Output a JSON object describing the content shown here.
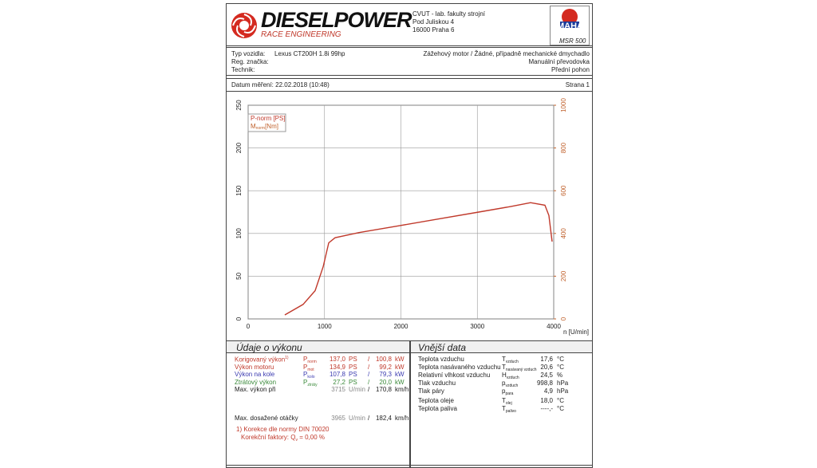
{
  "header": {
    "logo": "DIESELPOWER",
    "logo_sub": "RACE ENGINEERING",
    "address": [
      "CVUT - lab. fakulty strojní",
      "Pod Juliskou 4",
      "16000 Praha 6"
    ],
    "brand": "MAHA",
    "model": "MSR 500"
  },
  "vehicle": {
    "type_label": "Typ vozidla:",
    "type_value": "Lexus CT200H 1.8i 99hp",
    "reg_label": "Reg. značka:",
    "tech_label": "Technik:",
    "engine": "Zážehový motor / Žádné, případně mechanické dmychadlo",
    "gearbox": "Manuální převodovka",
    "drive": "Přední pohon"
  },
  "measurement": {
    "date": "Datum měření: 22.02.2018 (10:48)",
    "page": "Strana 1"
  },
  "chart_data": {
    "type": "line",
    "x_label": "n [U/min]",
    "x": [
      480,
      720,
      877,
      982,
      1055,
      1138,
      1452,
      1974,
      2496,
      3018,
      3436,
      3697,
      3885,
      3937,
      3979
    ],
    "series": [
      {
        "name": "P-norm [PS]",
        "color": "#c0392b",
        "values": [
          4.7,
          17,
          33,
          61,
          89,
          95,
          101,
          109,
          117,
          125,
          131.5,
          136,
          133,
          121,
          90.5
        ]
      }
    ],
    "torque_legend": {
      "symbol": "M",
      "sub": "norm",
      "unit": "[Nm]"
    },
    "xlim": [
      0,
      4000
    ],
    "xticks": [
      0,
      1000,
      2000,
      3000,
      4000
    ],
    "ylim": [
      0,
      250
    ],
    "yticks": [
      0,
      50,
      100,
      150,
      200,
      250
    ],
    "y2lim": [
      0,
      1000
    ],
    "y2ticks": [
      0,
      200,
      400,
      600,
      800,
      1000
    ],
    "y2color": "#c0602b",
    "grid": true
  },
  "performance": {
    "title": "Údaje o výkonu",
    "rows": [
      {
        "label": "Korigovaný výkon",
        "note": "1)",
        "sym": "P",
        "sub": "norm",
        "v1": "137,0",
        "u1": "PS",
        "sep": "/",
        "v2": "100,8",
        "u2": "kW",
        "color": "#c0392b"
      },
      {
        "label": "Výkon motoru",
        "sym": "P",
        "sub": "mot",
        "v1": "134,9",
        "u1": "PS",
        "sep": "/",
        "v2": "99,2",
        "u2": "kW",
        "color": "#c0392b"
      },
      {
        "label": "Výkon na kole",
        "sym": "P",
        "sub": "kolo",
        "v1": "107,8",
        "u1": "PS",
        "sep": "/",
        "v2": "79,3",
        "u2": "kW",
        "color": "#3b3bb0"
      },
      {
        "label": "Ztrátový výkon",
        "sym": "P",
        "sub": "ztráty",
        "v1": "27,2",
        "u1": "PS",
        "sep": "/",
        "v2": "20,0",
        "u2": "kW",
        "color": "#3a8a3a"
      },
      {
        "label": "Max. výkon při",
        "v1": "3715",
        "u1": "U/min",
        "sep": "/",
        "v2": "170,8",
        "u2": "km/h",
        "color": "#222"
      },
      {
        "label": "Max. dosažené otáčky",
        "v1": "3965",
        "u1": "U/min",
        "sep": "/",
        "v2": "182,4",
        "u2": "km/h",
        "color": "#222"
      }
    ],
    "footnote": "1) Korekce dle normy DIN 70020",
    "factor": "Korekční faktory: Q",
    "factor_sub": "v",
    "factor_value": "=  0,00 %"
  },
  "external": {
    "title": "Vnější data",
    "rows": [
      {
        "label": "Teplota vzduchu",
        "sym": "T",
        "sub": "vzduch",
        "value": "17,6",
        "unit": "°C"
      },
      {
        "label": "Teplota nasávaného vzduchu",
        "sym": "T",
        "sub": "nasávaný vzduch",
        "value": "20,6",
        "unit": "°C"
      },
      {
        "label": "Relativní vlhkost vzduchu",
        "sym": "H",
        "sub": "vzduch",
        "value": "24,5",
        "unit": "%"
      },
      {
        "label": "Tlak vzduchu",
        "sym": "p",
        "sub": "vzduch",
        "value": "998,8",
        "unit": "hPa"
      },
      {
        "label": "Tlak páry",
        "sym": "p",
        "sub": "para",
        "value": "4,9",
        "unit": "hPa"
      },
      {
        "label": "Teplota oleje",
        "sym": "T",
        "sub": "olej",
        "value": "18,0",
        "unit": "°C"
      },
      {
        "label": "Teplota paliva",
        "sym": "T",
        "sub": "palivo",
        "value": "----,-",
        "unit": "°C"
      }
    ]
  }
}
